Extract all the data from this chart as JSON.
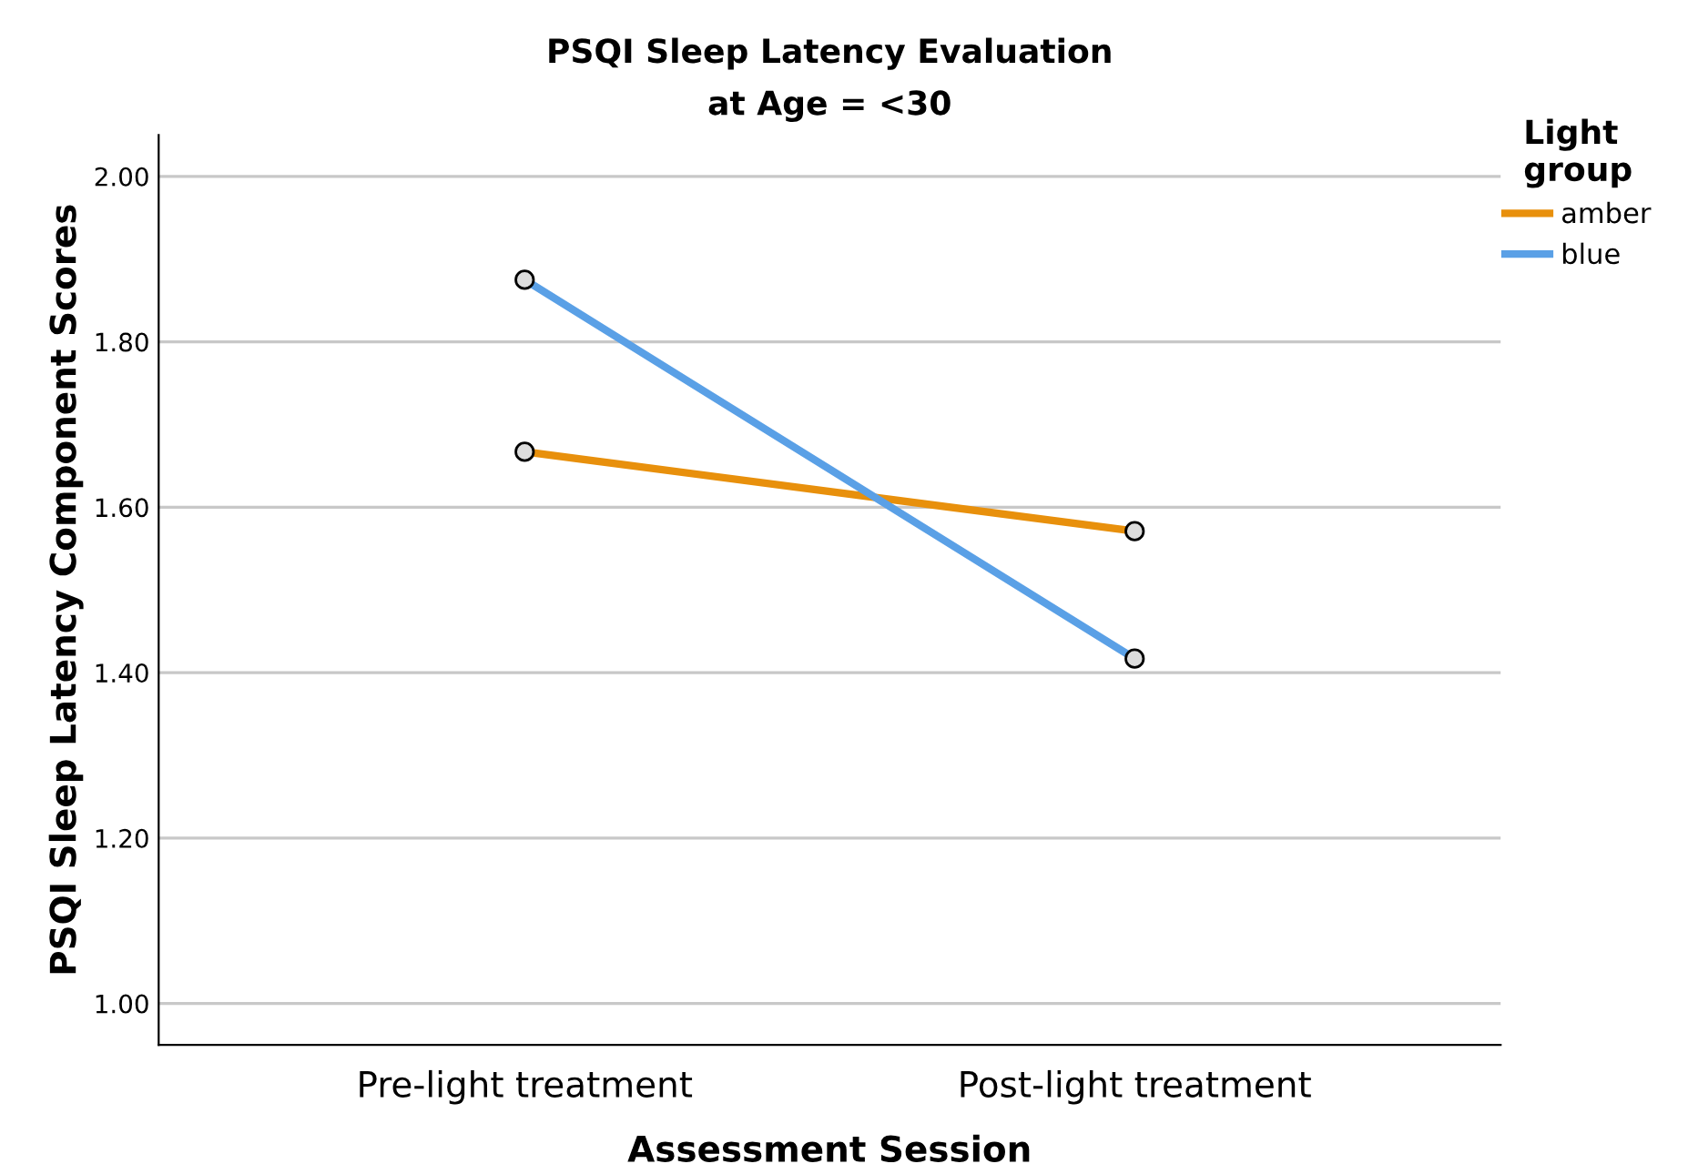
{
  "chart_data": {
    "type": "line",
    "title": "PSQI Sleep Latency Evaluation\nat Age = <30",
    "xlabel": "Assessment Session",
    "ylabel": "PSQI Sleep Latency Component Scores",
    "legend_title": "Light\ngroup",
    "categories": [
      "Pre-light treatment",
      "Post-light treatment"
    ],
    "series": [
      {
        "name": "amber",
        "color": "#e8900c",
        "values": [
          1.667,
          1.571
        ]
      },
      {
        "name": "blue",
        "color": "#5aa0e6",
        "values": [
          1.875,
          1.417
        ]
      }
    ],
    "ylim": [
      0.95,
      2.05
    ],
    "yticks": [
      {
        "value": 1.0,
        "label": "1.00"
      },
      {
        "value": 1.2,
        "label": "1.20"
      },
      {
        "value": 1.4,
        "label": "1.40"
      },
      {
        "value": 1.6,
        "label": "1.60"
      },
      {
        "value": 1.8,
        "label": "1.80"
      },
      {
        "value": 2.0,
        "label": "2.00"
      }
    ],
    "grid": "y",
    "legend": "top right",
    "marker": "circle",
    "line_style": "solid"
  }
}
